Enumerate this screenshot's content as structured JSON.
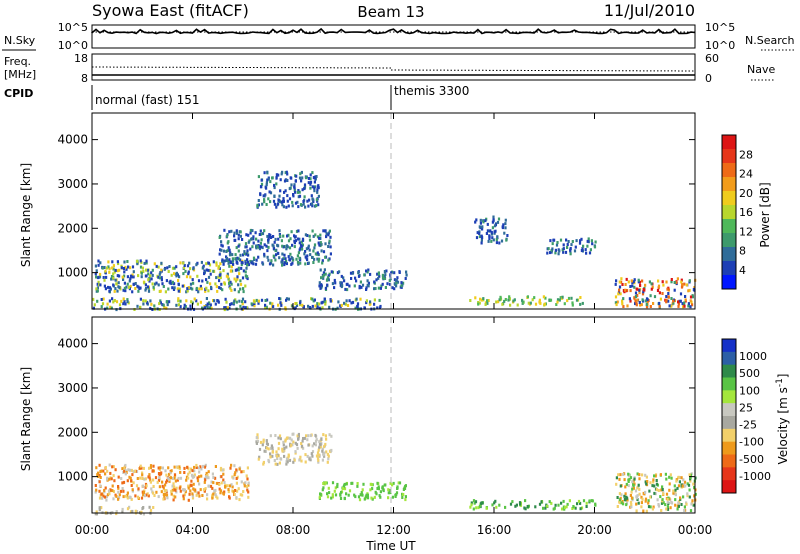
{
  "header": {
    "title": "Syowa East (fitACF)",
    "beam": "Beam 13",
    "date": "11/Jul/2010"
  },
  "top_panels": {
    "nsky_label": "N.Sky",
    "nsky_ticks": [
      "10^5",
      "10^0"
    ],
    "nsearch_label": "N.Search",
    "nsearch_ticks": [
      "10^5",
      "10^0"
    ],
    "freq_label": "Freq.",
    "freq_unit": "[MHz]",
    "freq_ticks": [
      "18",
      "8"
    ],
    "nave_label": "Nave",
    "nave_ticks": [
      "60",
      "0"
    ],
    "cpid_label": "CPID",
    "cpid_segments": [
      {
        "label": "normal (fast) 151",
        "start_hour": 0
      },
      {
        "label": "themis 3300",
        "start_hour": 12
      }
    ]
  },
  "chart_data": [
    {
      "type": "heatmap",
      "panel": "power",
      "ylabel": "Slant Range [km]",
      "ylim": [
        180,
        4600
      ],
      "yticks": [
        "1000",
        "2000",
        "3000",
        "4000"
      ],
      "xlim": [
        0,
        24
      ],
      "xticks": [
        "00:00",
        "04:00",
        "08:00",
        "12:00",
        "16:00",
        "20:00",
        "00:00"
      ],
      "colorbar": {
        "label": "Power [dB]",
        "ticks": [
          "4",
          "8",
          "12",
          "16",
          "20",
          "24",
          "28"
        ],
        "colors": [
          "#0016ff",
          "#1d3fb5",
          "#2f6c99",
          "#3d9a6c",
          "#4fb85a",
          "#b8d62d",
          "#f0cc1d",
          "#f29c1b",
          "#ee6a17",
          "#e6361a",
          "#dd1515"
        ]
      },
      "echo_regions": [
        {
          "x": [
            0.1,
            6.2
          ],
          "y": [
            600,
            1300
          ],
          "tone": "mixed"
        },
        {
          "x": [
            0.0,
            11.5
          ],
          "y": [
            200,
            450
          ],
          "tone": "mixed"
        },
        {
          "x": [
            5.0,
            9.5
          ],
          "y": [
            1200,
            2000
          ],
          "tone": "blue"
        },
        {
          "x": [
            6.5,
            9.0
          ],
          "y": [
            2500,
            3300
          ],
          "tone": "blue"
        },
        {
          "x": [
            9.0,
            12.5
          ],
          "y": [
            650,
            1100
          ],
          "tone": "blue"
        },
        {
          "x": [
            15.0,
            19.5
          ],
          "y": [
            300,
            500
          ],
          "tone": "green"
        },
        {
          "x": [
            15.2,
            16.5
          ],
          "y": [
            1700,
            2300
          ],
          "tone": "blue"
        },
        {
          "x": [
            18.0,
            20.0
          ],
          "y": [
            1450,
            1800
          ],
          "tone": "blue"
        },
        {
          "x": [
            20.8,
            24.0
          ],
          "y": [
            250,
            900
          ],
          "tone": "strong"
        }
      ]
    },
    {
      "type": "heatmap",
      "panel": "velocity",
      "ylabel": "Slant Range [km]",
      "ylim": [
        180,
        4600
      ],
      "yticks": [
        "1000",
        "2000",
        "3000",
        "4000"
      ],
      "xlim": [
        0,
        24
      ],
      "xticks": [
        "00:00",
        "04:00",
        "08:00",
        "12:00",
        "16:00",
        "20:00",
        "00:00"
      ],
      "xlabel": "Time UT",
      "colorbar": {
        "label": "Velocity [m s^-1]",
        "ticks": [
          "1000",
          "500",
          "100",
          "25",
          "-25",
          "-100",
          "-500",
          "-1000"
        ],
        "colors": [
          "#1531c8",
          "#2c5fa6",
          "#2e8a4a",
          "#59c445",
          "#a4e63c",
          "#c8c8c0",
          "#a8a8a0",
          "#f2d06a",
          "#ee9a1c",
          "#ee6a17",
          "#e6361a",
          "#dd1515"
        ]
      },
      "echo_regions": [
        {
          "x": [
            0.1,
            6.2
          ],
          "y": [
            500,
            1300
          ],
          "tone": "orange"
        },
        {
          "x": [
            0.0,
            2.5
          ],
          "y": [
            180,
            350
          ],
          "tone": "grey"
        },
        {
          "x": [
            6.5,
            9.5
          ],
          "y": [
            1300,
            2000
          ],
          "tone": "grey"
        },
        {
          "x": [
            9.0,
            12.5
          ],
          "y": [
            500,
            900
          ],
          "tone": "lightgreen"
        },
        {
          "x": [
            15.0,
            20.0
          ],
          "y": [
            300,
            500
          ],
          "tone": "green"
        },
        {
          "x": [
            20.8,
            24.0
          ],
          "y": [
            250,
            1100
          ],
          "tone": "mixedgreen"
        }
      ]
    }
  ]
}
